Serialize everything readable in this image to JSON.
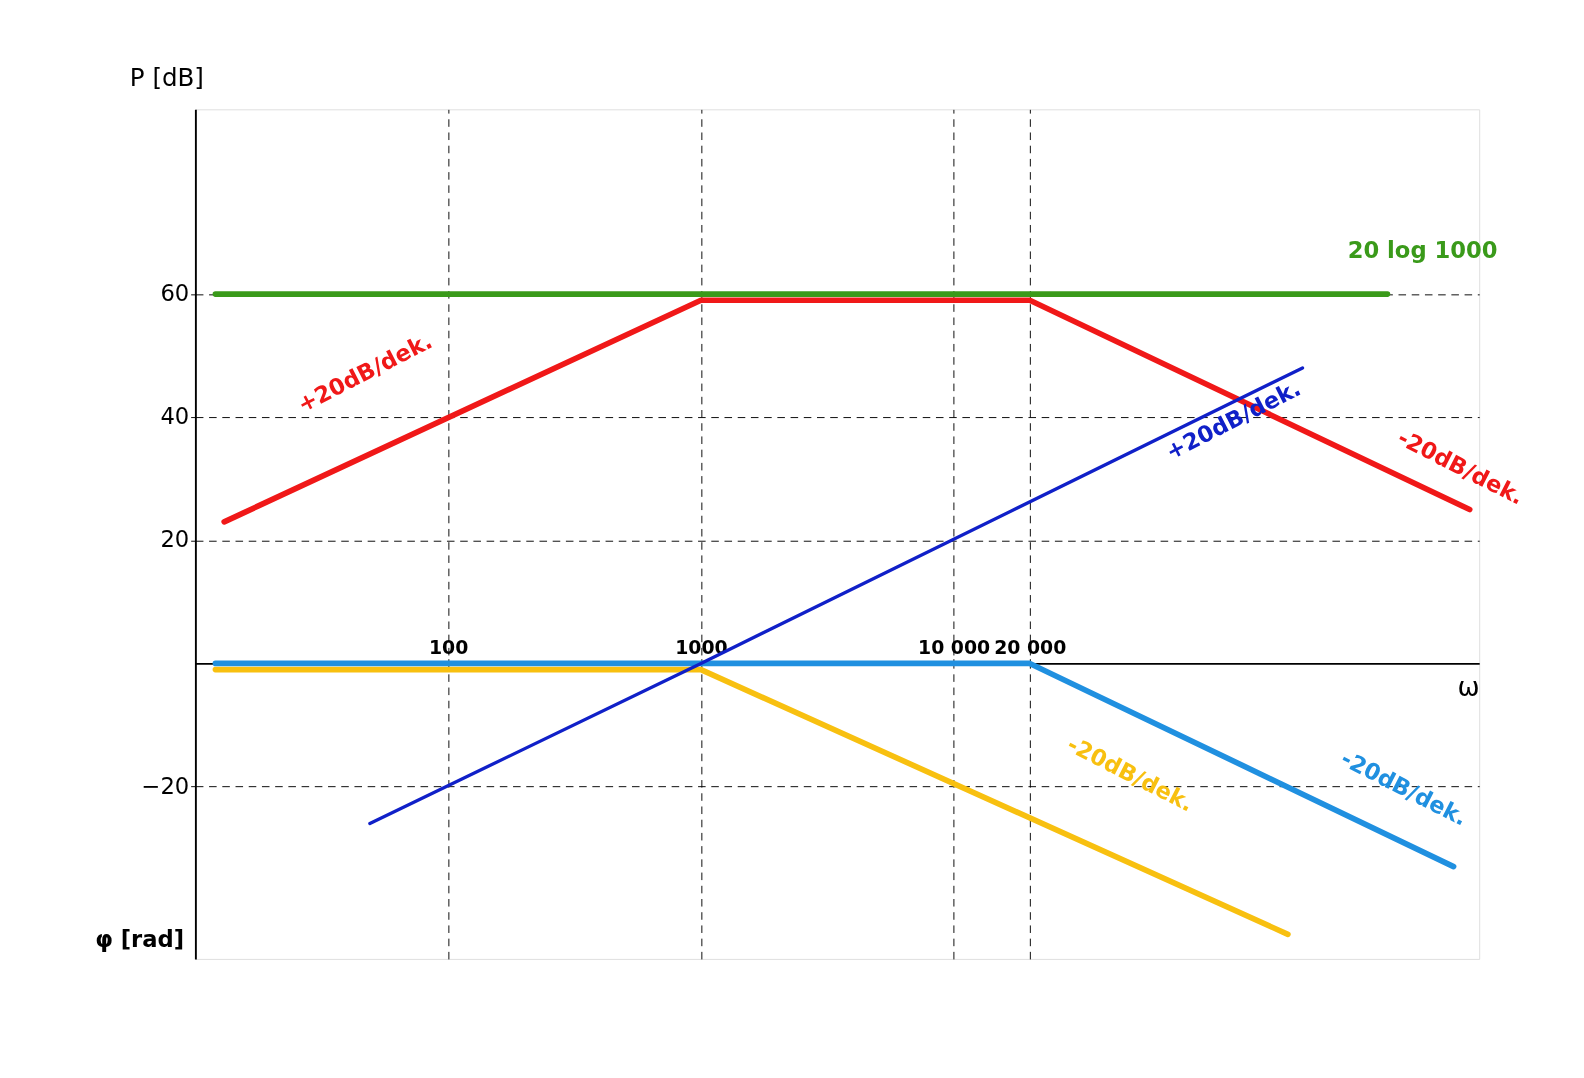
{
  "chart_data": {
    "type": "line",
    "xlabel": "ω",
    "ylabel": "P [dB]",
    "log": "x",
    "xlim": [
      10,
      1200000
    ],
    "ylim": [
      -48,
      90
    ],
    "xticks": [
      100,
      {
        "value": 1000,
        "label": "1000"
      },
      {
        "value": 10000,
        "label": "10 000"
      },
      {
        "value": 20000,
        "label": "20 000"
      }
    ],
    "yticks": [
      -20,
      20,
      40,
      60
    ],
    "grid": true,
    "series": [
      {
        "color": "#3a9a1a",
        "x": [
          12,
          520000
        ],
        "values": [
          60,
          60
        ]
      },
      {
        "color": "#f01818",
        "x": [
          13,
          1000,
          20000,
          1100000
        ],
        "values": [
          23,
          59,
          59,
          25
        ]
      },
      {
        "color": "#f8c010",
        "x": [
          12,
          1000,
          210000
        ],
        "values": [
          -1,
          -1,
          -44
        ]
      },
      {
        "color": "#2090e0",
        "x": [
          12,
          20000,
          950000
        ],
        "values": [
          0,
          0,
          -33
        ]
      },
      {
        "color": "#1020c8",
        "x": [
          49,
          1000,
          240000
        ],
        "values": [
          -26,
          0,
          48
        ]
      }
    ],
    "annotations": [
      "20 log 1000",
      "+20dB/dek.",
      "-20dB/dek.",
      "+20dB/dek.",
      "-20dB/dek.",
      "-20dB/dek.",
      "φ [rad]"
    ]
  }
}
